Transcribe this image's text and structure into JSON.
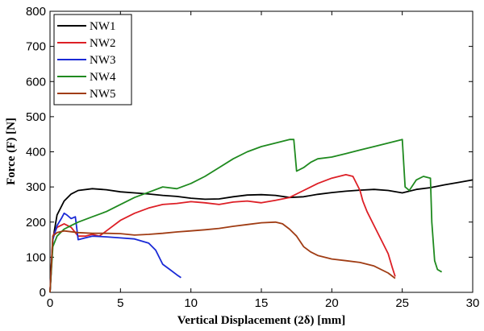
{
  "chart_data": {
    "type": "line",
    "xlabel": "Vertical Displacement (2δ) [mm]",
    "ylabel": "Force (F) [N]",
    "xlim": [
      0,
      30
    ],
    "ylim": [
      0,
      800
    ],
    "xticks": [
      "0",
      "5",
      "10",
      "15",
      "20",
      "25",
      "30"
    ],
    "yticks": [
      "0",
      "100",
      "200",
      "300",
      "400",
      "500",
      "600",
      "700",
      "800"
    ],
    "grid": false,
    "legend": "top-left",
    "series": [
      {
        "name": "NW1",
        "color": "#000000",
        "x": [
          0,
          0.2,
          0.5,
          1,
          1.5,
          2,
          3,
          4,
          5,
          6,
          7,
          8,
          9,
          10,
          11,
          12,
          13,
          14,
          15,
          16,
          17,
          18,
          19,
          20,
          21,
          22,
          23,
          24,
          25,
          25.5,
          26,
          27,
          28,
          29,
          30
        ],
        "y": [
          0,
          150,
          220,
          260,
          280,
          290,
          295,
          292,
          286,
          283,
          280,
          276,
          273,
          268,
          265,
          266,
          272,
          277,
          278,
          276,
          270,
          272,
          279,
          284,
          288,
          291,
          293,
          290,
          283,
          288,
          293,
          298,
          306,
          313,
          320
        ]
      },
      {
        "name": "NW2",
        "color": "#dd1f26",
        "x": [
          0,
          0.2,
          0.5,
          1,
          1.5,
          2,
          2.5,
          3,
          3.5,
          4,
          5,
          6,
          7,
          8,
          9,
          10,
          11,
          12,
          13,
          14,
          15,
          16,
          17,
          18,
          19,
          20,
          21,
          21.5,
          22,
          22.2,
          22.5,
          23,
          23.5,
          24,
          24.3,
          24.5
        ],
        "y": [
          0,
          160,
          185,
          195,
          185,
          160,
          160,
          165,
          160,
          175,
          205,
          225,
          240,
          250,
          253,
          258,
          255,
          250,
          257,
          260,
          255,
          262,
          270,
          290,
          310,
          325,
          335,
          330,
          290,
          260,
          230,
          190,
          150,
          110,
          70,
          45
        ]
      },
      {
        "name": "NW3",
        "color": "#1a2ad6",
        "x": [
          0,
          0.2,
          0.5,
          0.8,
          1,
          1.2,
          1.5,
          1.8,
          2,
          2.5,
          3,
          4,
          5,
          6,
          7,
          7.5,
          8,
          8.5,
          9,
          9.3
        ],
        "y": [
          0,
          150,
          190,
          210,
          225,
          220,
          210,
          215,
          150,
          155,
          160,
          158,
          155,
          152,
          140,
          120,
          80,
          65,
          50,
          42
        ]
      },
      {
        "name": "NW4",
        "color": "#1f8a1f",
        "x": [
          0,
          0.2,
          0.5,
          1,
          1.5,
          2,
          3,
          4,
          5,
          6,
          7,
          8,
          9,
          10,
          11,
          12,
          13,
          14,
          15,
          16,
          17,
          17.3,
          17.5,
          18,
          18.5,
          19,
          20,
          21,
          22,
          23,
          24,
          25,
          25.2,
          25.5,
          26,
          26.5,
          27,
          27.1,
          27.3,
          27.5,
          27.8
        ],
        "y": [
          0,
          130,
          160,
          180,
          190,
          200,
          215,
          230,
          250,
          270,
          285,
          300,
          295,
          310,
          330,
          355,
          380,
          400,
          415,
          425,
          435,
          435,
          345,
          355,
          370,
          380,
          385,
          395,
          405,
          415,
          425,
          435,
          300,
          290,
          320,
          330,
          325,
          200,
          90,
          65,
          58
        ]
      },
      {
        "name": "NW5",
        "color": "#a03c14",
        "x": [
          0,
          0.2,
          0.5,
          1,
          2,
          3,
          4,
          5,
          6,
          7,
          8,
          9,
          10,
          11,
          12,
          13,
          14,
          15,
          16,
          16.5,
          17,
          17.5,
          18,
          18.5,
          19,
          20,
          21,
          22,
          23,
          24,
          24.5
        ],
        "y": [
          0,
          160,
          170,
          175,
          170,
          168,
          168,
          167,
          163,
          165,
          168,
          172,
          175,
          178,
          182,
          188,
          193,
          198,
          200,
          195,
          180,
          160,
          130,
          115,
          105,
          95,
          90,
          85,
          75,
          55,
          40
        ]
      }
    ]
  }
}
